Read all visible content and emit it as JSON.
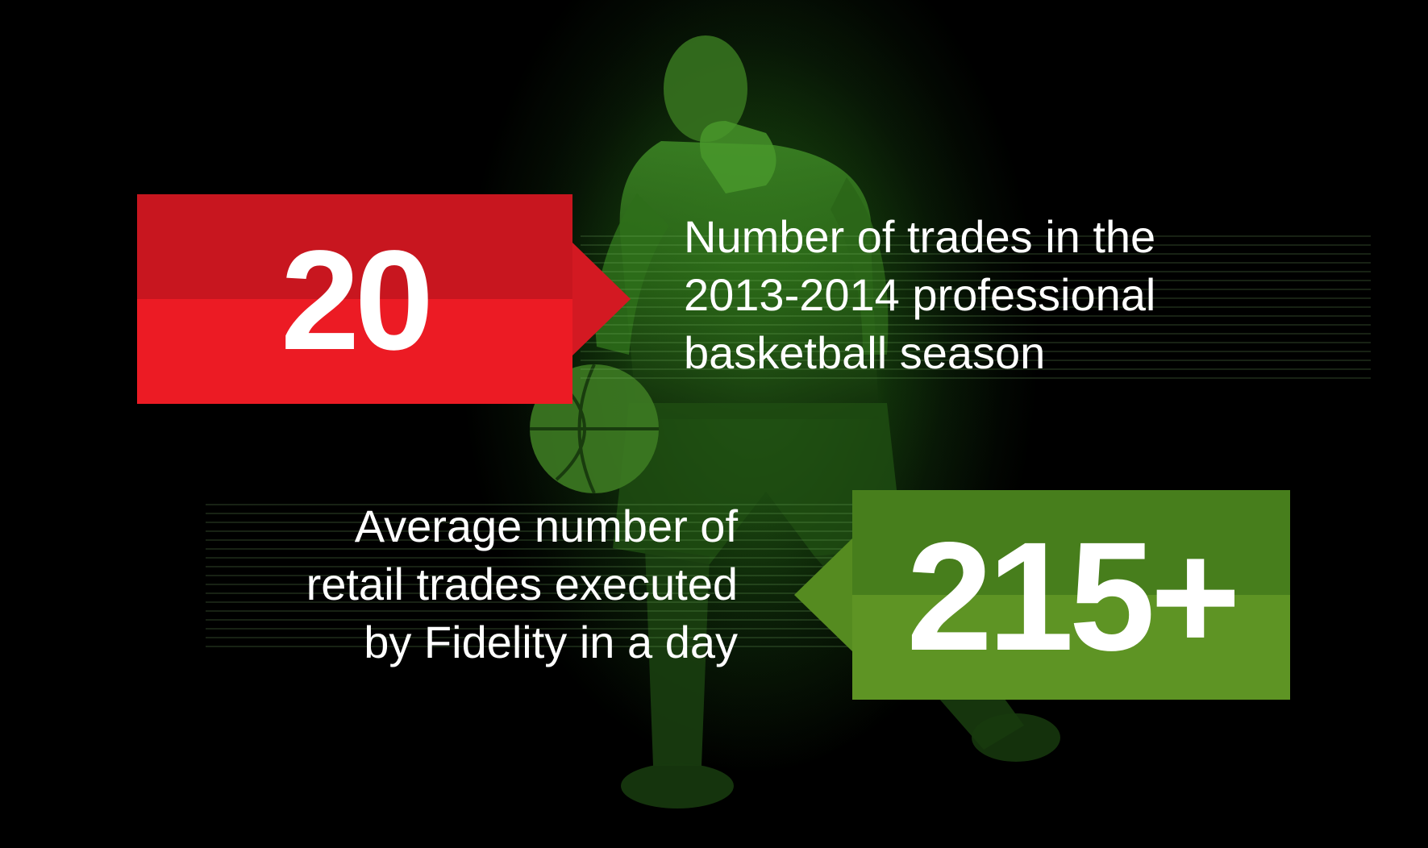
{
  "stats": [
    {
      "value": "20",
      "caption_lines": [
        "Number of trades in the",
        "2013-2014 professional",
        "basketball season"
      ],
      "color": "#ec1b24"
    },
    {
      "value": "215+",
      "caption_lines": [
        "Average number of",
        "retail trades executed",
        "by Fidelity in a day"
      ],
      "color": "#5e9424"
    }
  ],
  "colors": {
    "background": "#000000",
    "glow": "#1f5a12",
    "red_banner": "#ec1b24",
    "green_banner": "#5e9424",
    "text": "#ffffff"
  }
}
